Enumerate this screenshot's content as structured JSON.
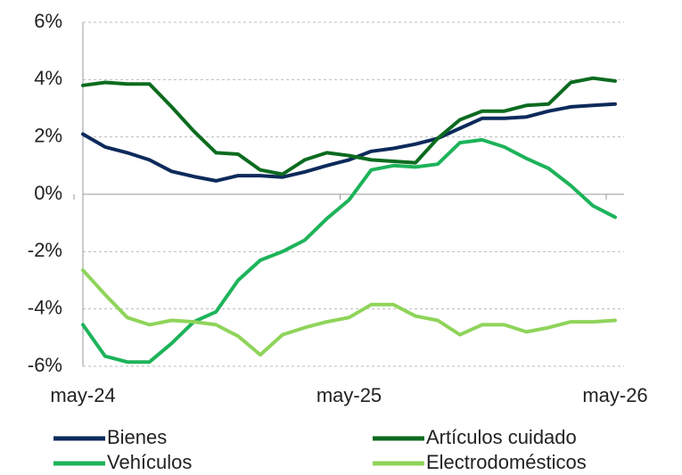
{
  "chart_data": {
    "type": "line",
    "categories": [
      "may-24",
      null,
      null,
      null,
      null,
      null,
      null,
      null,
      null,
      null,
      null,
      null,
      "may-25",
      null,
      null,
      null,
      null,
      null,
      null,
      null,
      null,
      null,
      null,
      null,
      "may-26"
    ],
    "series": [
      {
        "name": "Bienes",
        "color": "#0c2a5b",
        "values": [
          2.1,
          1.65,
          1.45,
          1.2,
          0.8,
          0.62,
          0.47,
          0.65,
          0.65,
          0.6,
          0.78,
          1.0,
          1.2,
          1.5,
          1.6,
          1.75,
          1.95,
          2.3,
          2.65,
          2.65,
          2.7,
          2.9,
          3.05,
          3.1,
          3.15
        ]
      },
      {
        "name": "Artículos cuidado",
        "color": "#0b6b1f",
        "values": [
          3.8,
          3.9,
          3.85,
          3.85,
          3.05,
          2.2,
          1.45,
          1.4,
          0.85,
          0.7,
          1.2,
          1.45,
          1.35,
          1.2,
          1.15,
          1.1,
          1.95,
          2.6,
          2.9,
          2.9,
          3.1,
          3.15,
          3.9,
          4.05,
          3.95
        ]
      },
      {
        "name": "Vehículos",
        "color": "#1db35a",
        "values": [
          -4.55,
          -5.65,
          -5.85,
          -5.85,
          -5.2,
          -4.45,
          -4.1,
          -3.0,
          -2.3,
          -2.0,
          -1.6,
          -0.85,
          -0.2,
          0.85,
          1.0,
          0.95,
          1.05,
          1.8,
          1.9,
          1.65,
          1.25,
          0.9,
          0.3,
          -0.4,
          -0.8
        ]
      },
      {
        "name": "Electrodomésticos",
        "color": "#8fd45a",
        "values": [
          -2.65,
          -3.5,
          -4.3,
          -4.55,
          -4.4,
          -4.45,
          -4.55,
          -4.95,
          -5.6,
          -4.9,
          -4.65,
          -4.45,
          -4.3,
          -3.85,
          -3.85,
          -4.25,
          -4.4,
          -4.9,
          -4.55,
          -4.55,
          -4.8,
          -4.65,
          -4.45,
          -4.45,
          -4.4
        ]
      }
    ],
    "ylim": [
      -6,
      6
    ],
    "yticks": [
      {
        "value": -6,
        "label": "-6%"
      },
      {
        "value": -4,
        "label": "-4%"
      },
      {
        "value": -2,
        "label": "-2%"
      },
      {
        "value": 0,
        "label": "0%"
      },
      {
        "value": 2,
        "label": "2%"
      },
      {
        "value": 4,
        "label": "4%"
      },
      {
        "value": 6,
        "label": "6%"
      }
    ],
    "grid": true
  }
}
